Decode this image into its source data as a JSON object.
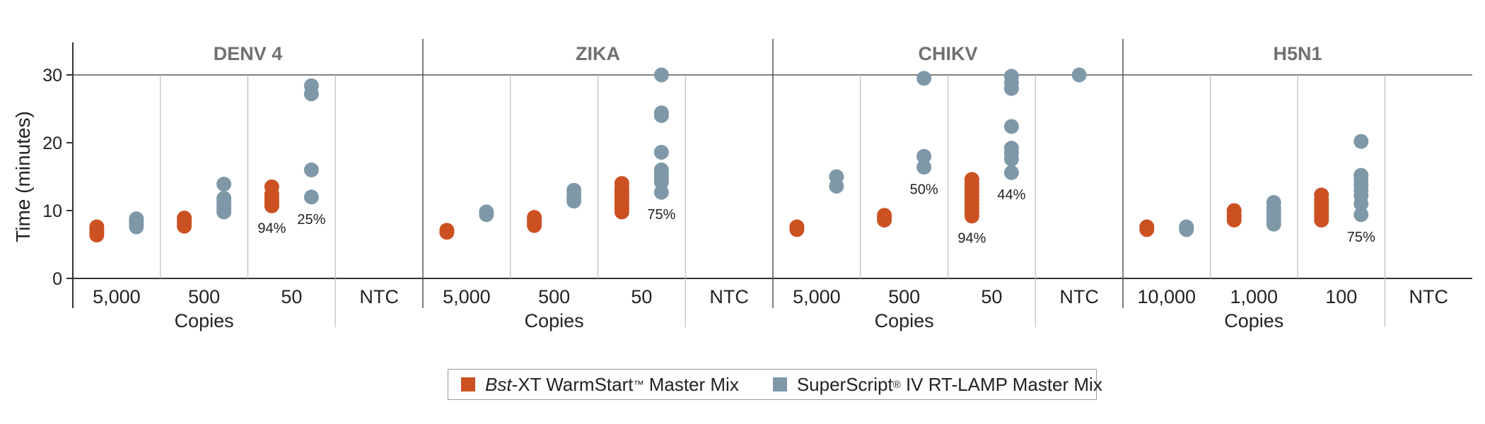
{
  "chart_data": {
    "type": "scatter",
    "ylabel": "Time (minutes)",
    "ylim": [
      0,
      30
    ],
    "yticks": [
      0,
      10,
      20,
      30
    ],
    "xgroup_label": "Copies",
    "series": [
      {
        "name": "Bst-XT WarmStart™ Master Mix",
        "color": "#cc5122"
      },
      {
        "name": "SuperScript® IV RT-LAMP Master Mix",
        "color": "#7f98a8"
      }
    ],
    "panels": [
      {
        "title": "DENV 4",
        "categories": [
          {
            "label": "5,000",
            "bst": [
              6.4,
              6.8,
              7.2,
              7.6
            ],
            "ss": [
              7.6,
              8.0,
              8.4,
              8.8
            ]
          },
          {
            "label": "500",
            "bst": [
              7.7,
              8.1,
              8.5,
              8.9
            ],
            "ss": [
              9.8,
              10.3,
              10.8,
              11.4,
              11.8,
              13.9
            ]
          },
          {
            "label": "50",
            "bst": [
              10.7,
              11.1,
              11.5,
              11.9,
              12.4,
              13.5
            ],
            "ss": [
              12.0,
              16.0,
              27.2,
              28.4
            ],
            "bst_pct": "94%",
            "ss_pct": "25%"
          },
          {
            "label": "NTC",
            "bst": [],
            "ss": []
          }
        ]
      },
      {
        "title": "ZIKA",
        "categories": [
          {
            "label": "5,000",
            "bst": [
              6.8,
              7.1
            ],
            "ss": [
              9.4,
              9.8
            ]
          },
          {
            "label": "500",
            "bst": [
              7.8,
              8.2,
              8.6,
              9.0
            ],
            "ss": [
              11.4,
              11.8,
              12.3,
              13.0
            ]
          },
          {
            "label": "50",
            "bst": [
              9.8,
              10.3,
              10.8,
              11.3,
              11.8,
              12.3,
              12.8,
              13.3,
              14.0
            ],
            "ss": [
              12.7,
              14.2,
              14.8,
              15.4,
              16.0,
              18.6,
              24.0,
              24.4,
              30.0
            ],
            "ss_pct": "75%"
          },
          {
            "label": "NTC",
            "bst": [],
            "ss": []
          }
        ]
      },
      {
        "title": "CHIKV",
        "categories": [
          {
            "label": "5,000",
            "bst": [
              7.2,
              7.6
            ],
            "ss": [
              13.6,
              15.0
            ]
          },
          {
            "label": "500",
            "bst": [
              8.6,
              9.0,
              9.3
            ],
            "ss": [
              16.4,
              18.0,
              29.5
            ]
          },
          {
            "label": "50",
            "bst": [
              9.2,
              9.8,
              10.4,
              11.0,
              11.6,
              12.2,
              12.8,
              13.4,
              14.0,
              14.6
            ],
            "ss": [
              15.6,
              17.6,
              18.5,
              19.2,
              22.4,
              28.0,
              28.8,
              29.8
            ],
            "bst_pct": "94%",
            "ss_pct": "44%"
          },
          {
            "label": "NTC",
            "bst": [],
            "ss": [
              30.0
            ]
          }
        ],
        "upper_pct": "50%"
      },
      {
        "title": "H5N1",
        "categories": [
          {
            "label": "10,000",
            "bst": [
              7.2,
              7.6
            ],
            "ss": [
              7.2,
              7.6
            ]
          },
          {
            "label": "1,000",
            "bst": [
              8.6,
              9.0,
              9.4,
              10.0
            ],
            "ss": [
              8.0,
              8.6,
              9.2,
              9.8,
              10.4,
              11.2
            ]
          },
          {
            "label": "100",
            "bst": [
              8.6,
              9.2,
              9.8,
              10.4,
              11.0,
              11.6,
              12.3
            ],
            "ss": [
              9.4,
              11.0,
              12.2,
              13.0,
              13.8,
              14.6,
              15.2,
              20.2
            ],
            "ss_pct": "75%"
          },
          {
            "label": "NTC",
            "bst": [],
            "ss": []
          }
        ]
      }
    ]
  },
  "legend": {
    "item1_italic": "Bst",
    "item1_rest": "-XT WarmStart",
    "item1_sup": "™",
    "item1_tail": " Master Mix",
    "item2_main": "SuperScript",
    "item2_sup": "®",
    "item2_tail": " IV RT-LAMP Master Mix"
  }
}
